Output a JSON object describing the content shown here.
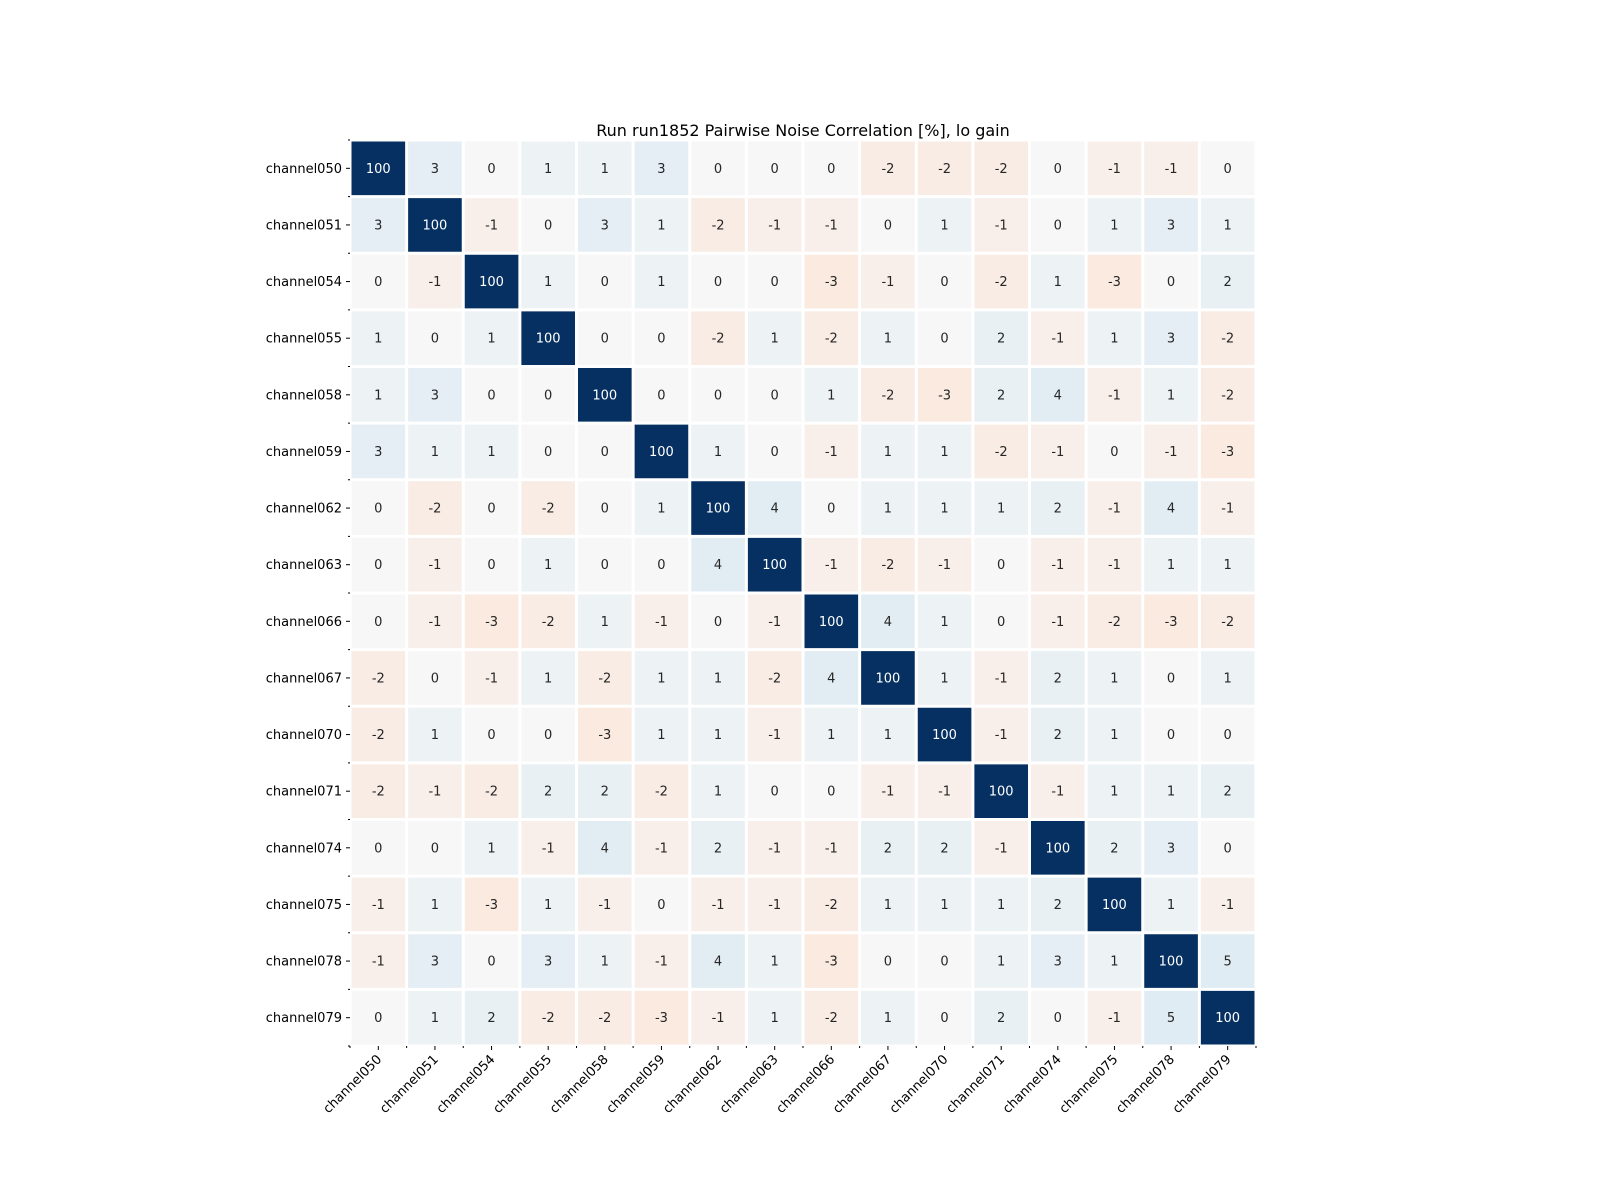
{
  "chart_data": {
    "type": "heatmap",
    "title": "Run run1852 Pairwise Noise Correlation [%], lo gain",
    "xlabel": "",
    "ylabel": "",
    "colormap": "RdBu diverging (negative = red, positive = blue)",
    "color_range": [
      -100,
      100
    ],
    "colors": {
      "negative": "#ca0020",
      "neutral": "#f7f7f7",
      "positive": "#053061"
    },
    "grid": false,
    "legend": "none",
    "x_tick_rotation_deg": 45,
    "labels": [
      "channel050",
      "channel051",
      "channel054",
      "channel055",
      "channel058",
      "channel059",
      "channel062",
      "channel063",
      "channel066",
      "channel067",
      "channel070",
      "channel071",
      "channel074",
      "channel075",
      "channel078",
      "channel079"
    ],
    "values": [
      [
        100,
        3,
        0,
        1,
        1,
        3,
        0,
        0,
        0,
        -2,
        -2,
        -2,
        0,
        -1,
        -1,
        0
      ],
      [
        3,
        100,
        -1,
        0,
        3,
        1,
        -2,
        -1,
        -1,
        0,
        1,
        -1,
        0,
        1,
        3,
        1
      ],
      [
        0,
        -1,
        100,
        1,
        0,
        1,
        0,
        0,
        -3,
        -1,
        0,
        -2,
        1,
        -3,
        0,
        2
      ],
      [
        1,
        0,
        1,
        100,
        0,
        0,
        -2,
        1,
        -2,
        1,
        0,
        2,
        -1,
        1,
        3,
        -2
      ],
      [
        1,
        3,
        0,
        0,
        100,
        0,
        0,
        0,
        1,
        -2,
        -3,
        2,
        4,
        -1,
        1,
        -2
      ],
      [
        3,
        1,
        1,
        0,
        0,
        100,
        1,
        0,
        -1,
        1,
        1,
        -2,
        -1,
        0,
        -1,
        -3
      ],
      [
        0,
        -2,
        0,
        -2,
        0,
        1,
        100,
        4,
        0,
        1,
        1,
        1,
        2,
        -1,
        4,
        -1
      ],
      [
        0,
        -1,
        0,
        1,
        0,
        0,
        4,
        100,
        -1,
        -2,
        -1,
        0,
        -1,
        -1,
        1,
        1
      ],
      [
        0,
        -1,
        -3,
        -2,
        1,
        -1,
        0,
        -1,
        100,
        4,
        1,
        0,
        -1,
        -2,
        -3,
        -2
      ],
      [
        -2,
        0,
        -1,
        1,
        -2,
        1,
        1,
        -2,
        4,
        100,
        1,
        -1,
        2,
        1,
        0,
        1
      ],
      [
        -2,
        1,
        0,
        0,
        -3,
        1,
        1,
        -1,
        1,
        1,
        100,
        -1,
        2,
        1,
        0,
        0
      ],
      [
        -2,
        -1,
        -2,
        2,
        2,
        -2,
        1,
        0,
        0,
        -1,
        -1,
        100,
        -1,
        1,
        1,
        2
      ],
      [
        0,
        0,
        1,
        -1,
        4,
        -1,
        2,
        -1,
        -1,
        2,
        2,
        -1,
        100,
        2,
        3,
        0
      ],
      [
        -1,
        1,
        -3,
        1,
        -1,
        0,
        -1,
        -1,
        -2,
        1,
        1,
        1,
        2,
        100,
        1,
        -1
      ],
      [
        -1,
        3,
        0,
        3,
        1,
        -1,
        4,
        1,
        -3,
        0,
        0,
        1,
        3,
        1,
        100,
        5
      ],
      [
        0,
        1,
        2,
        -2,
        -2,
        -3,
        -1,
        1,
        -2,
        1,
        0,
        2,
        0,
        -1,
        5,
        100
      ]
    ]
  }
}
